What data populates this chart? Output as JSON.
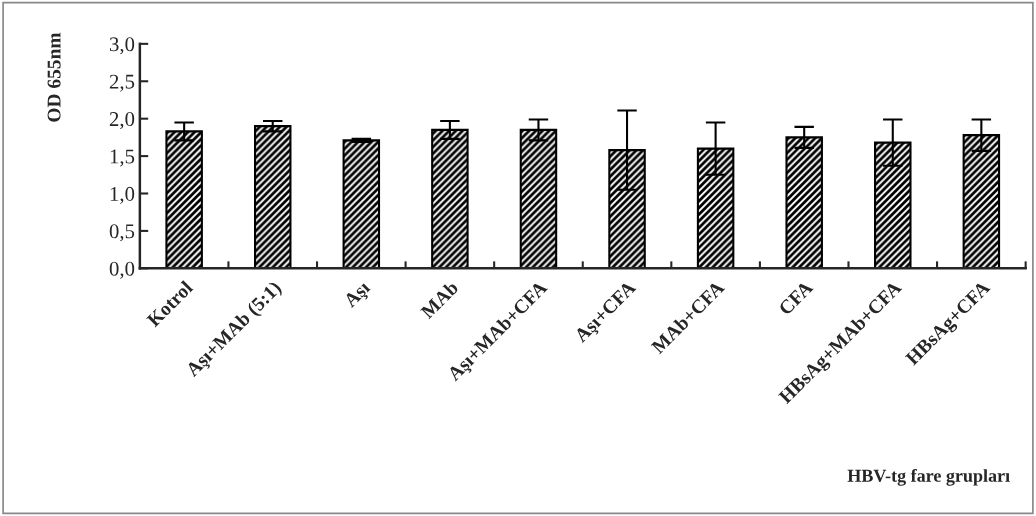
{
  "chart_data": {
    "type": "bar",
    "ylabel": "OD 655nm",
    "xlabel": "HBV-tg fare grupları",
    "categories": [
      "Kotrol",
      "Aşı+MAb (5:1)",
      "Aşı",
      "MAb",
      "Aşı+MAb+CFA",
      "Aşı+CFA",
      "MAb+CFA",
      "CFA",
      "HBsAg+MAb+CFA",
      "HBsAg+CFA"
    ],
    "values": [
      1.83,
      1.9,
      1.71,
      1.85,
      1.85,
      1.58,
      1.6,
      1.75,
      1.68,
      1.78
    ],
    "errors": [
      0.12,
      0.07,
      0.02,
      0.12,
      0.14,
      0.53,
      0.35,
      0.14,
      0.31,
      0.21
    ],
    "color": "#000000",
    "ylim": [
      0,
      3
    ],
    "yticks": [
      {
        "value": 0,
        "label": "0,0"
      },
      {
        "value": 0.5,
        "label": "0,5"
      },
      {
        "value": 1,
        "label": "1,0"
      },
      {
        "value": 1.5,
        "label": "1,5"
      },
      {
        "value": 2,
        "label": "2,0"
      },
      {
        "value": 2.5,
        "label": "2,5"
      },
      {
        "value": 3,
        "label": "3,0"
      }
    ],
    "grid": false,
    "legend": false
  }
}
